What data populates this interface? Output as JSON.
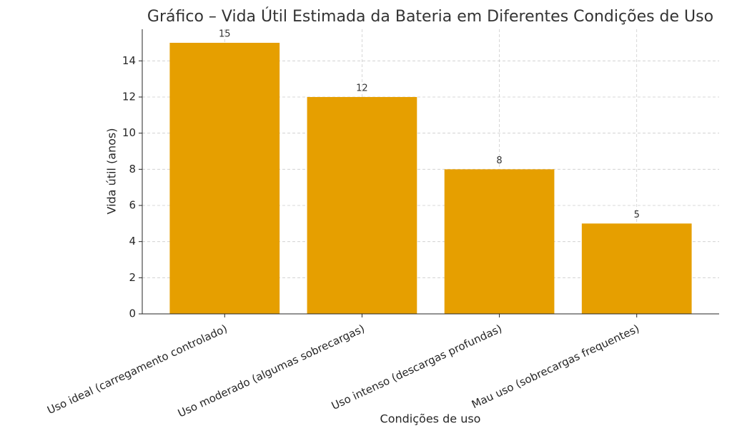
{
  "chart_data": {
    "type": "bar",
    "title": "Gráfico – Vida Útil Estimada da Bateria em Diferentes Condições de Uso",
    "x_label": "Condições de uso",
    "y_label": "Vida útil (anos)",
    "categories": [
      "Uso ideal (carregamento controlado)",
      "Uso moderado (algumas sobrecargas)",
      "Uso intenso (descargas profundas)",
      "Mau uso (sobrecargas frequentes)"
    ],
    "values": [
      15,
      12,
      8,
      5
    ],
    "color": "#e69f00",
    "ylim": [
      0,
      15.75
    ],
    "yticks": [
      0,
      2,
      4,
      6,
      8,
      10,
      12,
      14
    ],
    "grid": true
  }
}
